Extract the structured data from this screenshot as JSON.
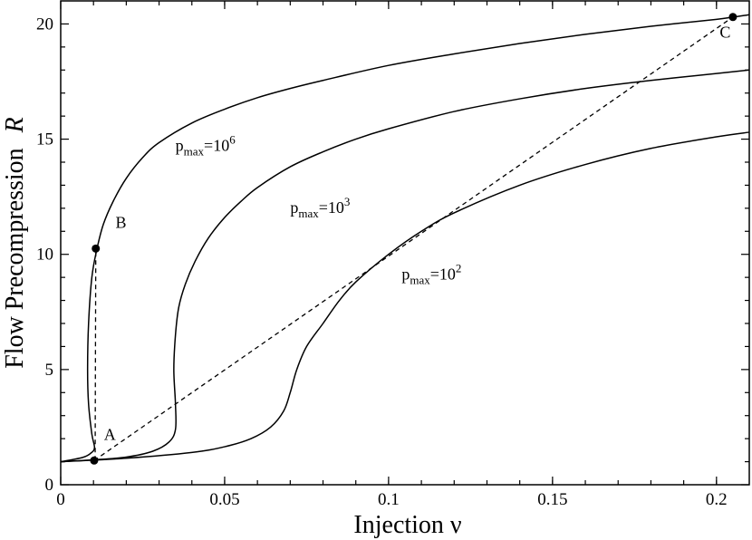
{
  "chart_data": {
    "type": "line",
    "xlabel": "Injection  ν",
    "ylabel": "Flow Precompression",
    "ylabel_symbol": "R",
    "xlim": [
      0,
      0.21
    ],
    "ylim": [
      0,
      21
    ],
    "xticks": [
      0,
      0.05,
      0.1,
      0.15,
      0.2
    ],
    "xtick_labels": [
      "0",
      "0.05",
      "0.1",
      "0.15",
      "0.2"
    ],
    "yticks": [
      0,
      5,
      10,
      15,
      20
    ],
    "ytick_labels": [
      "0",
      "5",
      "10",
      "15",
      "20"
    ],
    "grid": false,
    "series": [
      {
        "name": "p_max=10^6",
        "label_base": "p",
        "label_sub": "max",
        "label_mid": "=10",
        "label_sup": "6",
        "label_x": 0.035,
        "label_y": 14.5,
        "style": "solid",
        "points": [
          [
            0,
            1.0
          ],
          [
            0.004,
            1.1
          ],
          [
            0.007,
            1.2
          ],
          [
            0.009,
            1.35
          ],
          [
            0.0103,
            1.6
          ],
          [
            0.0095,
            2.2
          ],
          [
            0.0085,
            3.5
          ],
          [
            0.0082,
            5.0
          ],
          [
            0.0085,
            7.0
          ],
          [
            0.0095,
            9.0
          ],
          [
            0.011,
            10.2
          ],
          [
            0.013,
            11.3
          ],
          [
            0.016,
            12.3
          ],
          [
            0.02,
            13.3
          ],
          [
            0.025,
            14.2
          ],
          [
            0.03,
            14.85
          ],
          [
            0.04,
            15.7
          ],
          [
            0.05,
            16.3
          ],
          [
            0.06,
            16.8
          ],
          [
            0.07,
            17.2
          ],
          [
            0.08,
            17.55
          ],
          [
            0.1,
            18.2
          ],
          [
            0.12,
            18.7
          ],
          [
            0.14,
            19.15
          ],
          [
            0.16,
            19.55
          ],
          [
            0.18,
            19.9
          ],
          [
            0.2,
            20.2
          ],
          [
            0.21,
            20.4
          ]
        ]
      },
      {
        "name": "p_max=10^3",
        "label_base": "p",
        "label_sub": "max",
        "label_mid": "=10",
        "label_sup": "3",
        "label_x": 0.07,
        "label_y": 11.8,
        "style": "solid",
        "points": [
          [
            0,
            1.0
          ],
          [
            0.01,
            1.08
          ],
          [
            0.02,
            1.2
          ],
          [
            0.028,
            1.45
          ],
          [
            0.033,
            1.85
          ],
          [
            0.035,
            2.4
          ],
          [
            0.035,
            3.5
          ],
          [
            0.0345,
            5.0
          ],
          [
            0.035,
            6.5
          ],
          [
            0.036,
            7.7
          ],
          [
            0.038,
            8.7
          ],
          [
            0.041,
            9.7
          ],
          [
            0.045,
            10.7
          ],
          [
            0.05,
            11.6
          ],
          [
            0.055,
            12.3
          ],
          [
            0.06,
            12.9
          ],
          [
            0.07,
            13.8
          ],
          [
            0.08,
            14.45
          ],
          [
            0.09,
            15.0
          ],
          [
            0.1,
            15.45
          ],
          [
            0.12,
            16.2
          ],
          [
            0.14,
            16.75
          ],
          [
            0.16,
            17.2
          ],
          [
            0.18,
            17.55
          ],
          [
            0.2,
            17.85
          ],
          [
            0.21,
            18.0
          ]
        ]
      },
      {
        "name": "p_max=10^2",
        "label_base": "p",
        "label_sub": "max",
        "label_mid": "=10",
        "label_sup": "2",
        "label_x": 0.104,
        "label_y": 8.9,
        "style": "solid",
        "points": [
          [
            0,
            1.0
          ],
          [
            0.02,
            1.15
          ],
          [
            0.04,
            1.4
          ],
          [
            0.05,
            1.65
          ],
          [
            0.058,
            2.0
          ],
          [
            0.064,
            2.5
          ],
          [
            0.068,
            3.2
          ],
          [
            0.07,
            4.0
          ],
          [
            0.072,
            5.0
          ],
          [
            0.075,
            6.0
          ],
          [
            0.08,
            7.0
          ],
          [
            0.085,
            8.0
          ],
          [
            0.09,
            8.8
          ],
          [
            0.1,
            10.0
          ],
          [
            0.11,
            11.0
          ],
          [
            0.12,
            11.8
          ],
          [
            0.14,
            13.0
          ],
          [
            0.16,
            13.9
          ],
          [
            0.18,
            14.6
          ],
          [
            0.2,
            15.1
          ],
          [
            0.21,
            15.3
          ]
        ]
      },
      {
        "name": "",
        "style": "dashed",
        "points": [
          [
            0.0102,
            1.05
          ],
          [
            0.205,
            20.3
          ]
        ]
      },
      {
        "name": "",
        "style": "dashed",
        "points": [
          [
            0.0105,
            1.05
          ],
          [
            0.0107,
            10.25
          ]
        ]
      }
    ],
    "marked_points": [
      {
        "label": "A",
        "x": 0.0102,
        "y": 1.05,
        "label_dx": 0.003,
        "label_dy": 0.9
      },
      {
        "label": "B",
        "x": 0.0107,
        "y": 10.25,
        "label_dx": 0.006,
        "label_dy": 0.9
      },
      {
        "label": "C",
        "x": 0.205,
        "y": 20.3,
        "label_dx": -0.004,
        "label_dy": -0.9
      }
    ]
  }
}
